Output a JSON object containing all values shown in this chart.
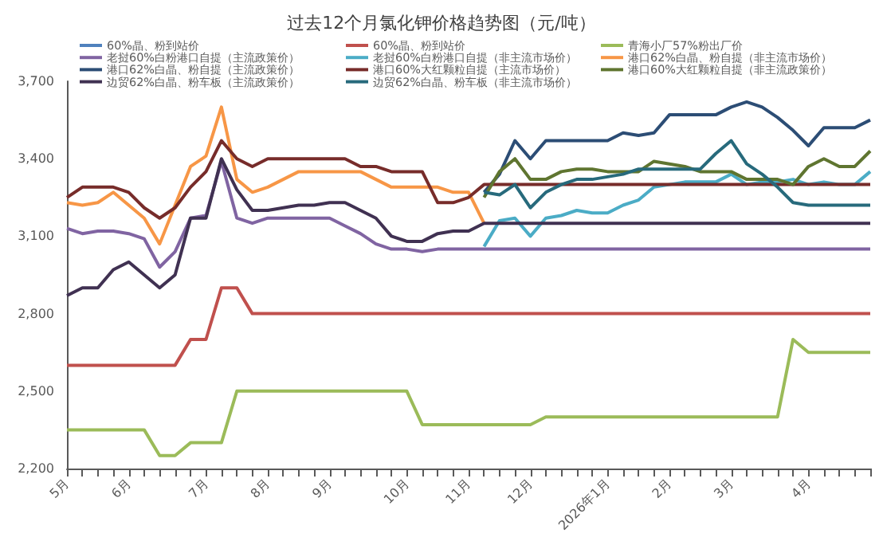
{
  "chart_data": {
    "type": "line",
    "title": "过去12个月氯化钾价格趋势图（元/吨）",
    "categories": [
      "5月",
      null,
      null,
      null,
      "6月",
      null,
      null,
      null,
      null,
      "7月",
      null,
      null,
      null,
      "8月",
      null,
      null,
      null,
      "9月",
      null,
      null,
      null,
      null,
      "10月",
      null,
      null,
      null,
      "11月",
      null,
      null,
      null,
      "12月",
      null,
      null,
      null,
      null,
      "2026年1月",
      null,
      null,
      null,
      "2月",
      null,
      null,
      null,
      "3月",
      null,
      null,
      null,
      null,
      "4月",
      null,
      null,
      null,
      null
    ],
    "series": [
      {
        "name": "60%晶、粉到站价",
        "color": "#4f81bd",
        "values": [
          null,
          null,
          null,
          null,
          null,
          null,
          null,
          null,
          null,
          null,
          null,
          null,
          null,
          null,
          null,
          null,
          null,
          null,
          null,
          null,
          null,
          null,
          null,
          null,
          null,
          null,
          null,
          null,
          null,
          null,
          null,
          null,
          null,
          null,
          null,
          null,
          null,
          null,
          null,
          null,
          null,
          null,
          null,
          null,
          null,
          null,
          null,
          null,
          null,
          null,
          null,
          null,
          null
        ]
      },
      {
        "name": "60%晶、粉到站价",
        "color": "#c0504d",
        "values": [
          2600,
          2600,
          2600,
          2600,
          2600,
          2600,
          2600,
          2600,
          2700,
          2700,
          2900,
          2900,
          2800,
          2800,
          2800,
          2800,
          2800,
          2800,
          2800,
          2800,
          2800,
          2800,
          2800,
          2800,
          2800,
          2800,
          2800,
          2800,
          2800,
          2800,
          2800,
          2800,
          2800,
          2800,
          2800,
          2800,
          2800,
          2800,
          2800,
          2800,
          2800,
          2800,
          2800,
          2800,
          2800,
          2800,
          2800,
          2800,
          2800,
          2800,
          2800,
          2800,
          2800
        ]
      },
      {
        "name": "青海小厂57%粉出厂价",
        "color": "#9bbb59",
        "values": [
          2350,
          2350,
          2350,
          2350,
          2350,
          2350,
          2250,
          2250,
          2300,
          2300,
          2300,
          2500,
          2500,
          2500,
          2500,
          2500,
          2500,
          2500,
          2500,
          2500,
          2500,
          2500,
          2500,
          2370,
          2370,
          2370,
          2370,
          2370,
          2370,
          2370,
          2370,
          2400,
          2400,
          2400,
          2400,
          2400,
          2400,
          2400,
          2400,
          2400,
          2400,
          2400,
          2400,
          2400,
          2400,
          2400,
          2400,
          2700,
          2650,
          2650,
          2650,
          2650,
          2650
        ]
      },
      {
        "name": "老挝60%白粉港口自提（主流政策价）",
        "color": "#8064a2",
        "values": [
          3130,
          3110,
          3120,
          3120,
          3110,
          3090,
          2980,
          3040,
          3170,
          3180,
          3390,
          3170,
          3150,
          3170,
          3170,
          3170,
          3170,
          3170,
          3140,
          3110,
          3070,
          3050,
          3050,
          3040,
          3050,
          3050,
          3050,
          3050,
          3050,
          3050,
          3050,
          3050,
          3050,
          3050,
          3050,
          3050,
          3050,
          3050,
          3050,
          3050,
          3050,
          3050,
          3050,
          3050,
          3050,
          3050,
          3050,
          3050,
          3050,
          3050,
          3050,
          3050,
          3050
        ]
      },
      {
        "name": "老挝60%白粉港口自提（非主流市场价）",
        "color": "#4bacc6",
        "values": [
          null,
          null,
          null,
          null,
          null,
          null,
          null,
          null,
          null,
          null,
          null,
          null,
          null,
          null,
          null,
          null,
          null,
          null,
          null,
          null,
          null,
          null,
          null,
          null,
          null,
          null,
          null,
          3060,
          3160,
          3170,
          3100,
          3170,
          3180,
          3200,
          3190,
          3190,
          3220,
          3240,
          3290,
          3300,
          3310,
          3310,
          3310,
          3340,
          3300,
          3310,
          3310,
          3320,
          3300,
          3310,
          3300,
          3300,
          3350
        ]
      },
      {
        "name": "港口62%白晶、粉自提（非主流市场价）",
        "color": "#f79646",
        "values": [
          3230,
          3220,
          3230,
          3270,
          3220,
          3170,
          3070,
          3220,
          3370,
          3410,
          3600,
          3320,
          3270,
          3290,
          3320,
          3350,
          3350,
          3350,
          3350,
          3350,
          3320,
          3290,
          3290,
          3290,
          3290,
          3270,
          3270,
          3150,
          null,
          null,
          null,
          null,
          null,
          null,
          null,
          null,
          null,
          null,
          null,
          null,
          null,
          null,
          null,
          null,
          null,
          null,
          null,
          null,
          null,
          null,
          null,
          null,
          null
        ]
      },
      {
        "name": "港口62%白晶、粉自提（主流政策价）",
        "color": "#2c4d75",
        "values": [
          null,
          null,
          null,
          null,
          null,
          null,
          null,
          null,
          null,
          null,
          null,
          null,
          null,
          null,
          null,
          null,
          null,
          null,
          null,
          null,
          null,
          null,
          null,
          null,
          null,
          null,
          null,
          3270,
          3340,
          3470,
          3400,
          3470,
          3470,
          3470,
          3470,
          3470,
          3500,
          3490,
          3500,
          3570,
          3570,
          3570,
          3570,
          3600,
          3620,
          3600,
          3560,
          3510,
          3450,
          3520,
          3520,
          3520,
          3550
        ]
      },
      {
        "name": "港口60%大红颗粒自提（主流市场价）",
        "color": "#772c2a",
        "values": [
          3250,
          3290,
          3290,
          3290,
          3270,
          3210,
          3170,
          3210,
          3290,
          3350,
          3470,
          3400,
          3370,
          3400,
          3400,
          3400,
          3400,
          3400,
          3400,
          3370,
          3370,
          3350,
          3350,
          3350,
          3230,
          3230,
          3250,
          3300,
          3300,
          3300,
          3300,
          3300,
          3300,
          3300,
          3300,
          3300,
          3300,
          3300,
          3300,
          3300,
          3300,
          3300,
          3300,
          3300,
          3300,
          3300,
          3300,
          3300,
          3300,
          3300,
          3300,
          3300,
          3300
        ]
      },
      {
        "name": "港口60%大红颗粒自提（非主流政策价）",
        "color": "#5f7530",
        "values": [
          null,
          null,
          null,
          null,
          null,
          null,
          null,
          null,
          null,
          null,
          null,
          null,
          null,
          null,
          null,
          null,
          null,
          null,
          null,
          null,
          null,
          null,
          null,
          null,
          null,
          null,
          null,
          3250,
          3350,
          3400,
          3320,
          3320,
          3350,
          3360,
          3360,
          3350,
          3350,
          3350,
          3390,
          3380,
          3370,
          3350,
          3350,
          3350,
          3320,
          3320,
          3320,
          3300,
          3370,
          3400,
          3370,
          3370,
          3430
        ]
      },
      {
        "name": "边贸62%白晶、粉车板（主流政策价）",
        "color": "#403152",
        "values": [
          2870,
          2900,
          2900,
          2970,
          3000,
          2950,
          2900,
          2950,
          3170,
          3170,
          3400,
          3280,
          3200,
          3200,
          3210,
          3220,
          3220,
          3230,
          3230,
          3200,
          3170,
          3100,
          3080,
          3080,
          3110,
          3120,
          3120,
          3150,
          3150,
          3150,
          3150,
          3150,
          3150,
          3150,
          3150,
          3150,
          3150,
          3150,
          3150,
          3150,
          3150,
          3150,
          3150,
          3150,
          3150,
          3150,
          3150,
          3150,
          3150,
          3150,
          3150,
          3150,
          3150
        ]
      },
      {
        "name": "边贸62%白晶、粉车板（非主流市场价）",
        "color": "#276a7c",
        "values": [
          null,
          null,
          null,
          null,
          null,
          null,
          null,
          null,
          null,
          null,
          null,
          null,
          null,
          null,
          null,
          null,
          null,
          null,
          null,
          null,
          null,
          null,
          null,
          null,
          null,
          null,
          null,
          3270,
          3260,
          3300,
          3210,
          3270,
          3300,
          3320,
          3320,
          3330,
          3340,
          3360,
          3360,
          3360,
          3360,
          3360,
          3420,
          3470,
          3380,
          3340,
          3290,
          3230,
          3220,
          3220,
          3220,
          3220,
          3220
        ]
      }
    ],
    "ylim": [
      2200,
      3700
    ],
    "yticks": [
      {
        "value": 2200,
        "label": "2,200"
      },
      {
        "value": 2500,
        "label": "2,500"
      },
      {
        "value": 2800,
        "label": "2,800"
      },
      {
        "value": 3100,
        "label": "3,100"
      },
      {
        "value": 3400,
        "label": "3,400"
      },
      {
        "value": 3700,
        "label": "3,700"
      }
    ],
    "grid": false,
    "legend": "top",
    "marker": "none",
    "line_style": "solid"
  }
}
